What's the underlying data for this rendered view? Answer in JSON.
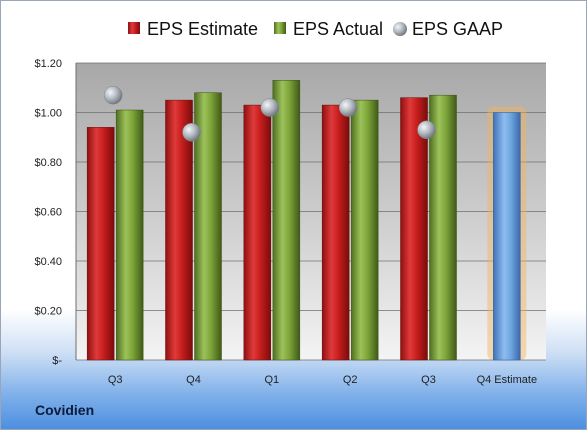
{
  "company": "Covidien",
  "colors": {
    "estimate": "#d62828",
    "actual": "#7fa63a",
    "gaap": "#a9b0b8",
    "forecast": "#6ea6e0",
    "forecast_glow": "#f5b15a"
  },
  "chart_data": {
    "type": "bar",
    "categories": [
      "Q3",
      "Q4",
      "Q1",
      "Q2",
      "Q3",
      "Q4 Estimate"
    ],
    "series": [
      {
        "name": "EPS Estimate",
        "values": [
          0.94,
          1.05,
          1.03,
          1.03,
          1.06,
          null
        ]
      },
      {
        "name": "EPS Actual",
        "values": [
          1.01,
          1.08,
          1.13,
          1.05,
          1.07,
          null
        ]
      },
      {
        "name": "EPS GAAP",
        "values": [
          1.07,
          0.92,
          1.02,
          1.02,
          0.93,
          null
        ]
      }
    ],
    "forecast": {
      "category": "Q4 Estimate",
      "value": 1.0
    },
    "ylim": [
      0,
      1.2
    ],
    "yticks": [
      0,
      0.2,
      0.4,
      0.6,
      0.8,
      1.0,
      1.2
    ],
    "ytick_labels": [
      "$-",
      "$0.20",
      "$0.40",
      "$0.60",
      "$0.80",
      "$1.00",
      "$1.20"
    ],
    "legend_position": "top",
    "grid": true
  }
}
